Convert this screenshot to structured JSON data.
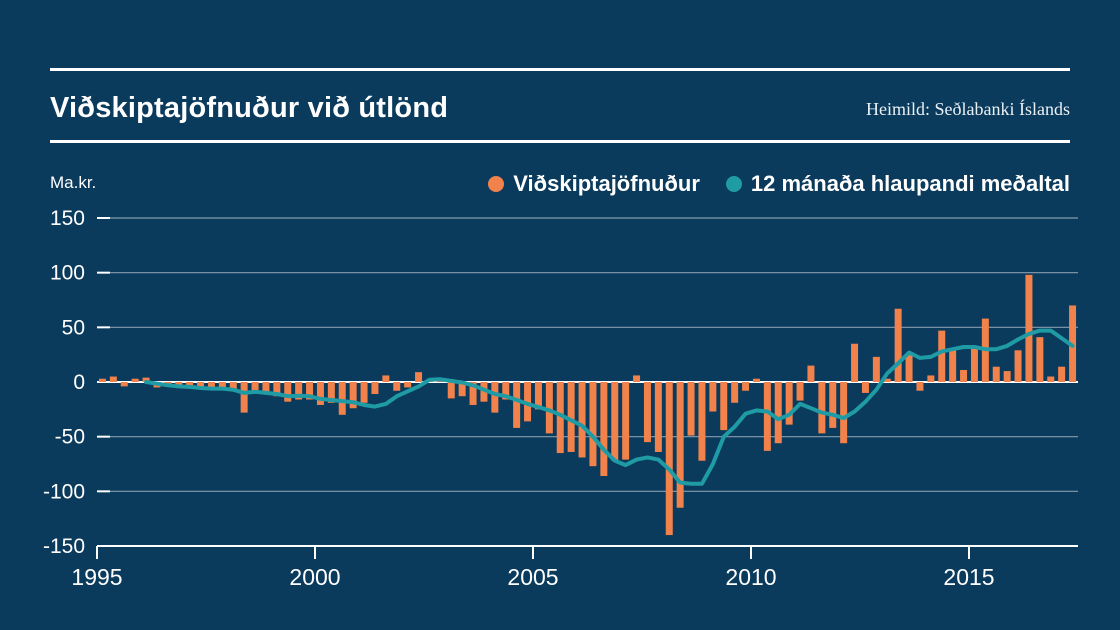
{
  "page": {
    "background": "#0A3A5C"
  },
  "header": {
    "title": "Viðskiptajöfnuður við útlönd",
    "source": "Heimild: Seðlabanki Íslands"
  },
  "legend": [
    {
      "label": "Viðskiptajöfnuður",
      "color": "#F2824B"
    },
    {
      "label": "12 mánaða hlaupandi meðaltal",
      "color": "#1F9BA6"
    }
  ],
  "axis": {
    "unit_label": "Ma.kr."
  },
  "chart_data": {
    "type": "bar",
    "title": "Viðskiptajöfnuður við útlönd",
    "ylabel": "Ma.kr.",
    "ylim": [
      -150,
      150
    ],
    "yticks": [
      150,
      100,
      50,
      0,
      -50,
      -100,
      -150
    ],
    "xticks": [
      1995,
      2000,
      2005,
      2010,
      2015
    ],
    "x_start": "1995-Q1",
    "x_end": "2017-Q2",
    "frequency": "quarterly",
    "grid": "horizontal",
    "legend_position": "top",
    "colors": {
      "background": "#0A3A5C",
      "bars": "#F2824B",
      "line": "#1F9BA6",
      "zero_line": "#FFFFFF",
      "gridline": "rgba(255,255,255,0.5)"
    },
    "series": [
      {
        "name": "Viðskiptajöfnuður",
        "type": "bar",
        "color": "#F2824B",
        "start_index": 0,
        "values": [
          3,
          5,
          -4,
          3,
          4,
          -5,
          -3,
          -4,
          -6,
          -5,
          -7,
          -6,
          -8,
          -28,
          -8,
          -10,
          -13,
          -18,
          -16,
          -16,
          -21,
          -19,
          -30,
          -24,
          -19,
          -11,
          6,
          -8,
          -5,
          9,
          2,
          3,
          -15,
          -13,
          -21,
          -18,
          -28,
          -16,
          -42,
          -36,
          -25,
          -47,
          -65,
          -64,
          -69,
          -77,
          -86,
          -72,
          -71,
          6,
          -55,
          -64,
          -140,
          -115,
          -49,
          -72,
          -27,
          -44,
          -19,
          -8,
          3,
          -63,
          -56,
          -39,
          -17,
          15,
          -47,
          -42,
          -56,
          35,
          -10,
          23,
          3,
          67,
          25,
          -8,
          6,
          47,
          30,
          11,
          32,
          58,
          14,
          10,
          29,
          98,
          41,
          5,
          14,
          70
        ]
      },
      {
        "name": "12 mánaða hlaupandi meðaltal",
        "type": "line",
        "color": "#1F9BA6",
        "start_index": 4,
        "values": [
          0,
          -1.5,
          -3,
          -4,
          -4.5,
          -5.5,
          -6,
          -6,
          -7,
          -10,
          -9,
          -10,
          -11,
          -13,
          -12.5,
          -13,
          -15.5,
          -16.5,
          -17.5,
          -18.5,
          -21,
          -22.5,
          -20,
          -13,
          -8.5,
          -4,
          2,
          2.5,
          1,
          -0.5,
          -3,
          -7,
          -11,
          -13,
          -16.5,
          -20,
          -23,
          -26,
          -30,
          -35,
          -40,
          -50,
          -62,
          -72,
          -76,
          -71,
          -69,
          -71,
          -80,
          -92,
          -93,
          -93,
          -75,
          -50,
          -41,
          -29,
          -26,
          -27,
          -34,
          -30,
          -20,
          -24,
          -28,
          -30,
          -33,
          -27,
          -18,
          -7,
          8,
          17,
          27,
          22,
          23,
          28,
          30,
          32,
          32,
          30,
          30,
          33,
          39,
          44,
          47,
          47,
          40,
          33
        ]
      }
    ]
  }
}
